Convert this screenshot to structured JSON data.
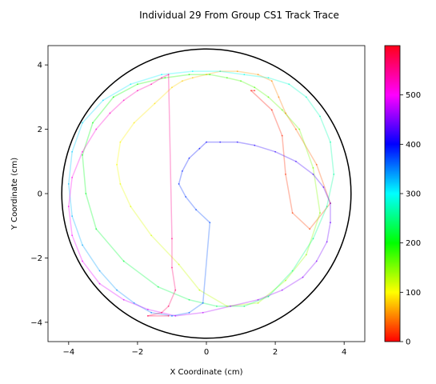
{
  "chart_data": {
    "type": "line",
    "title": "Individual 29 From Group CS1 Track Trace",
    "xlabel": "X Coordinate (cm)",
    "ylabel": "Y Coordinate (cm)",
    "xlim": [
      -4.6,
      4.6
    ],
    "ylim": [
      -4.6,
      4.6
    ],
    "x_ticks": [
      -4,
      -2,
      0,
      2,
      4
    ],
    "y_ticks": [
      -4,
      -2,
      0,
      2,
      4
    ],
    "x_tick_labels": [
      "−4",
      "−2",
      "0",
      "2",
      "4"
    ],
    "y_tick_labels": [
      "−4",
      "−2",
      "0",
      "2",
      "4"
    ],
    "arena": {
      "shape": "circle",
      "center": [
        0,
        0
      ],
      "radius": 4.2
    },
    "grid": false,
    "colorbar": {
      "colormap": "hsv",
      "range": [
        0,
        600
      ],
      "ticks": [
        0,
        100,
        200,
        300,
        400,
        500
      ],
      "tick_labels": [
        "0",
        "100",
        "200",
        "300",
        "400",
        "500"
      ]
    },
    "track": {
      "x": [
        1.4,
        1.3,
        1.9,
        2.2,
        2.3,
        2.5,
        3.0,
        3.6,
        3.2,
        2.6,
        2.3,
        2.1,
        1.9,
        1.5,
        0.9,
        0.4,
        0.0,
        -0.4,
        -0.7,
        -1.0,
        -1.5,
        -2.1,
        -2.5,
        -2.6,
        -2.5,
        -2.2,
        -1.6,
        -0.8,
        -0.2,
        0.6,
        1.5,
        2.3,
        2.9,
        3.3,
        3.1,
        2.7,
        2.2,
        1.8,
        1.4,
        1.0,
        0.6,
        0.1,
        -0.5,
        -1.2,
        -2.0,
        -2.7,
        -3.3,
        -3.6,
        -3.5,
        -3.2,
        -2.4,
        -1.4,
        -0.5,
        0.3,
        1.1,
        1.8,
        2.5,
        3.1,
        3.5,
        3.7,
        3.6,
        3.3,
        2.9,
        2.4,
        1.8,
        1.1,
        0.4,
        -0.4,
        -1.3,
        -2.2,
        -3.0,
        -3.6,
        -3.9,
        -4.0,
        -3.9,
        -3.6,
        -3.1,
        -2.6,
        -2.1,
        -1.6,
        -1.0,
        -0.5,
        -0.1,
        0.1,
        -0.3,
        -0.6,
        -0.8,
        -0.7,
        -0.5,
        -0.2,
        0.0,
        0.4,
        0.9,
        1.4,
        2.0,
        2.6,
        3.1,
        3.4,
        3.6,
        3.6,
        3.5,
        3.2,
        2.8,
        2.2,
        1.5,
        0.7,
        -0.1,
        -0.9,
        -1.7,
        -2.4,
        -3.1,
        -3.6,
        -3.9,
        -4.0,
        -3.9,
        -3.6,
        -3.2,
        -2.8,
        -2.4,
        -2.0,
        -1.6,
        -1.3,
        -1.1,
        -1.0,
        -1.0,
        -0.9,
        -1.1,
        -1.3,
        -1.7,
        -1.1
      ],
      "y": [
        3.2,
        3.2,
        2.6,
        1.8,
        0.6,
        -0.6,
        -1.1,
        -0.3,
        0.9,
        2.0,
        2.5,
        3.0,
        3.5,
        3.7,
        3.8,
        3.8,
        3.7,
        3.6,
        3.5,
        3.3,
        2.8,
        2.2,
        1.6,
        0.9,
        0.3,
        -0.4,
        -1.3,
        -2.2,
        -3.0,
        -3.5,
        -3.4,
        -2.7,
        -1.9,
        -0.6,
        0.8,
        2.0,
        2.6,
        3.0,
        3.3,
        3.5,
        3.6,
        3.7,
        3.7,
        3.6,
        3.4,
        3.0,
        2.2,
        1.2,
        0.0,
        -1.1,
        -2.1,
        -2.9,
        -3.3,
        -3.5,
        -3.5,
        -3.2,
        -2.4,
        -1.4,
        -0.4,
        0.6,
        1.6,
        2.4,
        3.0,
        3.4,
        3.6,
        3.7,
        3.8,
        3.8,
        3.7,
        3.4,
        2.9,
        2.2,
        1.3,
        0.3,
        -0.7,
        -1.6,
        -2.4,
        -3.0,
        -3.4,
        -3.7,
        -3.8,
        -3.7,
        -3.4,
        -0.9,
        -0.5,
        -0.1,
        0.3,
        0.7,
        1.1,
        1.4,
        1.6,
        1.6,
        1.6,
        1.5,
        1.3,
        1.0,
        0.6,
        0.2,
        -0.3,
        -0.9,
        -1.5,
        -2.1,
        -2.6,
        -3.0,
        -3.3,
        -3.5,
        -3.7,
        -3.8,
        -3.6,
        -3.3,
        -2.8,
        -2.1,
        -1.3,
        -0.4,
        0.5,
        1.3,
        2.0,
        2.5,
        2.9,
        3.2,
        3.4,
        3.6,
        3.7,
        -1.4,
        -2.3,
        -3.0,
        -3.5,
        -3.7,
        -3.8,
        -3.8
      ],
      "t": [
        0,
        4.7,
        9.4,
        14.1,
        18.8,
        23.4,
        28.1,
        32.8,
        37.5,
        42.2,
        46.9,
        51.6,
        56.3,
        61.0,
        65.6,
        70.3,
        75.0,
        79.7,
        84.4,
        89.1,
        93.8,
        98.4,
        103.1,
        107.8,
        112.5,
        117.2,
        121.9,
        126.6,
        131.3,
        135.9,
        140.6,
        145.3,
        150.0,
        154.7,
        159.4,
        164.1,
        168.8,
        173.4,
        178.1,
        182.8,
        187.5,
        192.2,
        196.9,
        201.6,
        206.3,
        210.9,
        215.6,
        220.3,
        225.0,
        229.7,
        234.4,
        239.1,
        243.8,
        248.4,
        253.1,
        257.8,
        262.5,
        267.2,
        271.9,
        276.6,
        281.3,
        285.9,
        290.6,
        295.3,
        300.0,
        304.7,
        309.4,
        314.1,
        318.8,
        323.4,
        328.1,
        332.8,
        337.5,
        342.2,
        346.9,
        351.6,
        356.3,
        360.9,
        365.6,
        370.3,
        375.0,
        379.7,
        384.4,
        389.1,
        393.8,
        398.4,
        403.1,
        407.8,
        412.5,
        417.2,
        421.9,
        426.6,
        431.3,
        435.9,
        440.6,
        445.3,
        450.0,
        454.7,
        459.4,
        464.1,
        468.8,
        473.4,
        478.1,
        482.8,
        487.5,
        492.2,
        496.9,
        501.6,
        506.3,
        510.9,
        515.6,
        520.3,
        525.0,
        529.7,
        534.4,
        539.1,
        543.8,
        548.4,
        553.1,
        557.8,
        562.5,
        567.2,
        571.9,
        576.6,
        581.3,
        585.9,
        590.6,
        595.3,
        600.0,
        600.0
      ]
    }
  }
}
